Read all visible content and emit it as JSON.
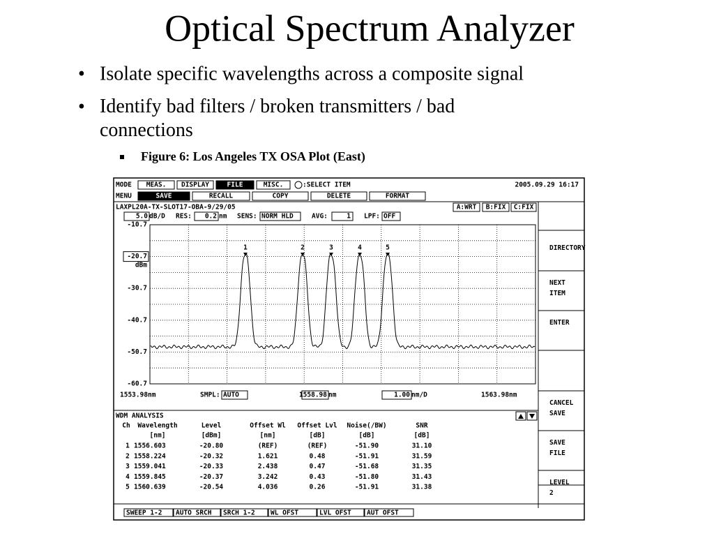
{
  "title": "Optical Spectrum Analyzer",
  "bullets": [
    "Isolate specific wavelengths across a composite signal",
    "Identify bad filters / broken transmitters / bad connections"
  ],
  "sub_bullet": "Figure 6: Los Angeles TX OSA Plot (East)",
  "osa": {
    "mode_label": "MODE",
    "mode_tabs": [
      "MEAS.",
      "DISPLAY",
      "FILE",
      "MISC."
    ],
    "select_hint": ":SELECT ITEM",
    "datetime": "2005.09.29 16:17",
    "menu_label": "MENU",
    "menu_items": [
      "SAVE",
      "RECALL",
      "COPY",
      "DELETE",
      "FORMAT"
    ],
    "trace_title": "LAXPL20A-TX-SLOT17-OBA-9/29/05",
    "trace_modes": [
      "A:WRT",
      "B:FIX",
      "C:FIX"
    ],
    "scale": {
      "value": "5.0",
      "unit": "dB/D"
    },
    "res": {
      "label": "RES:",
      "value": "0.2",
      "unit": "nm"
    },
    "sens": {
      "label": "SENS:",
      "value": "NORM HLD"
    },
    "avg": {
      "label": "AVG:",
      "value": "1"
    },
    "lpf": {
      "label": "LPF:",
      "value": "OFF"
    },
    "y_labels": [
      "-10.7",
      "-20.7",
      "-30.7",
      "-40.7",
      "-50.7",
      "-60.7"
    ],
    "y_unit": "dBm",
    "markers": [
      "1",
      "2",
      "3",
      "4",
      "5"
    ],
    "x_start": "1553.98nm",
    "smpl": {
      "label": "SMPL:",
      "value": "AUTO"
    },
    "center": {
      "value": "1558.98",
      "unit": "nm"
    },
    "span": {
      "value": "1.00",
      "unit": "nm/D"
    },
    "x_end": "1563.98nm",
    "softkeys": [
      "DIRECTORY",
      "NEXT ITEM",
      "ENTER",
      "CANCEL SAVE",
      "SAVE FILE",
      "LEVEL 2"
    ],
    "analysis": {
      "title": "WDM ANALYSIS",
      "headers": [
        "Ch",
        "Wavelength",
        "Level",
        "Offset Wl",
        "Offset Lvl",
        "Noise(/BW)",
        "SNR"
      ],
      "units": [
        "[nm]",
        "[dBm]",
        "[nm]",
        "[dB]",
        "[dB]",
        "[dB]"
      ],
      "rows": [
        [
          "1",
          "1556.603",
          "-20.80",
          "(REF)",
          "(REF)",
          "-51.90",
          "31.10"
        ],
        [
          "2",
          "1558.224",
          "-20.32",
          "1.621",
          "0.48",
          "-51.91",
          "31.59"
        ],
        [
          "3",
          "1559.041",
          "-20.33",
          "2.438",
          "0.47",
          "-51.68",
          "31.35"
        ],
        [
          "4",
          "1559.845",
          "-20.37",
          "3.242",
          "0.43",
          "-51.80",
          "31.43"
        ],
        [
          "5",
          "1560.639",
          "-20.54",
          "4.036",
          "0.26",
          "-51.91",
          "31.38"
        ]
      ]
    },
    "bottom_buttons": [
      "SWEEP 1-2",
      "AUTO SRCH",
      "SRCH 1-2",
      "WL OFST",
      "LVL OFST",
      "AUT OFST"
    ]
  }
}
